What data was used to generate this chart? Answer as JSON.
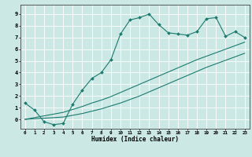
{
  "xlabel": "Humidex (Indice chaleur)",
  "bg_color": "#cce8e4",
  "grid_color": "#ffffff",
  "line_color": "#1a7a6e",
  "xlim": [
    -0.5,
    23.5
  ],
  "ylim": [
    -0.8,
    9.8
  ],
  "xticks": [
    0,
    1,
    2,
    3,
    4,
    5,
    6,
    7,
    8,
    9,
    10,
    11,
    12,
    13,
    14,
    15,
    16,
    17,
    18,
    19,
    20,
    21,
    22,
    23
  ],
  "yticks": [
    0,
    1,
    2,
    3,
    4,
    5,
    6,
    7,
    8,
    9
  ],
  "line1_x": [
    0,
    1,
    2,
    3,
    4,
    5,
    6,
    7,
    8,
    9,
    10,
    11,
    12,
    13,
    14,
    15,
    16,
    17,
    18,
    19,
    20,
    21,
    22,
    23
  ],
  "line1_y": [
    1.4,
    0.8,
    -0.2,
    -0.45,
    -0.35,
    1.3,
    2.5,
    3.5,
    4.0,
    5.1,
    7.3,
    8.5,
    8.7,
    9.0,
    8.1,
    7.4,
    7.3,
    7.2,
    7.5,
    8.6,
    8.7,
    7.1,
    7.5,
    7.0
  ],
  "line2_x": [
    0,
    1,
    2,
    3,
    4,
    5,
    6,
    7,
    8,
    9,
    10,
    11,
    12,
    13,
    14,
    15,
    16,
    17,
    18,
    19,
    20,
    21,
    22,
    23
  ],
  "line2_y": [
    0.0,
    0.15,
    0.3,
    0.45,
    0.6,
    0.85,
    1.1,
    1.4,
    1.65,
    1.95,
    2.3,
    2.65,
    3.0,
    3.35,
    3.7,
    4.05,
    4.4,
    4.75,
    5.1,
    5.4,
    5.7,
    6.0,
    6.3,
    6.6
  ],
  "line3_x": [
    0,
    1,
    2,
    3,
    4,
    5,
    6,
    7,
    8,
    9,
    10,
    11,
    12,
    13,
    14,
    15,
    16,
    17,
    18,
    19,
    20,
    21,
    22,
    23
  ],
  "line3_y": [
    0.0,
    0.05,
    0.1,
    0.15,
    0.2,
    0.35,
    0.5,
    0.7,
    0.9,
    1.15,
    1.4,
    1.7,
    2.0,
    2.35,
    2.7,
    3.05,
    3.4,
    3.75,
    4.1,
    4.45,
    4.75,
    5.05,
    5.35,
    5.65
  ]
}
